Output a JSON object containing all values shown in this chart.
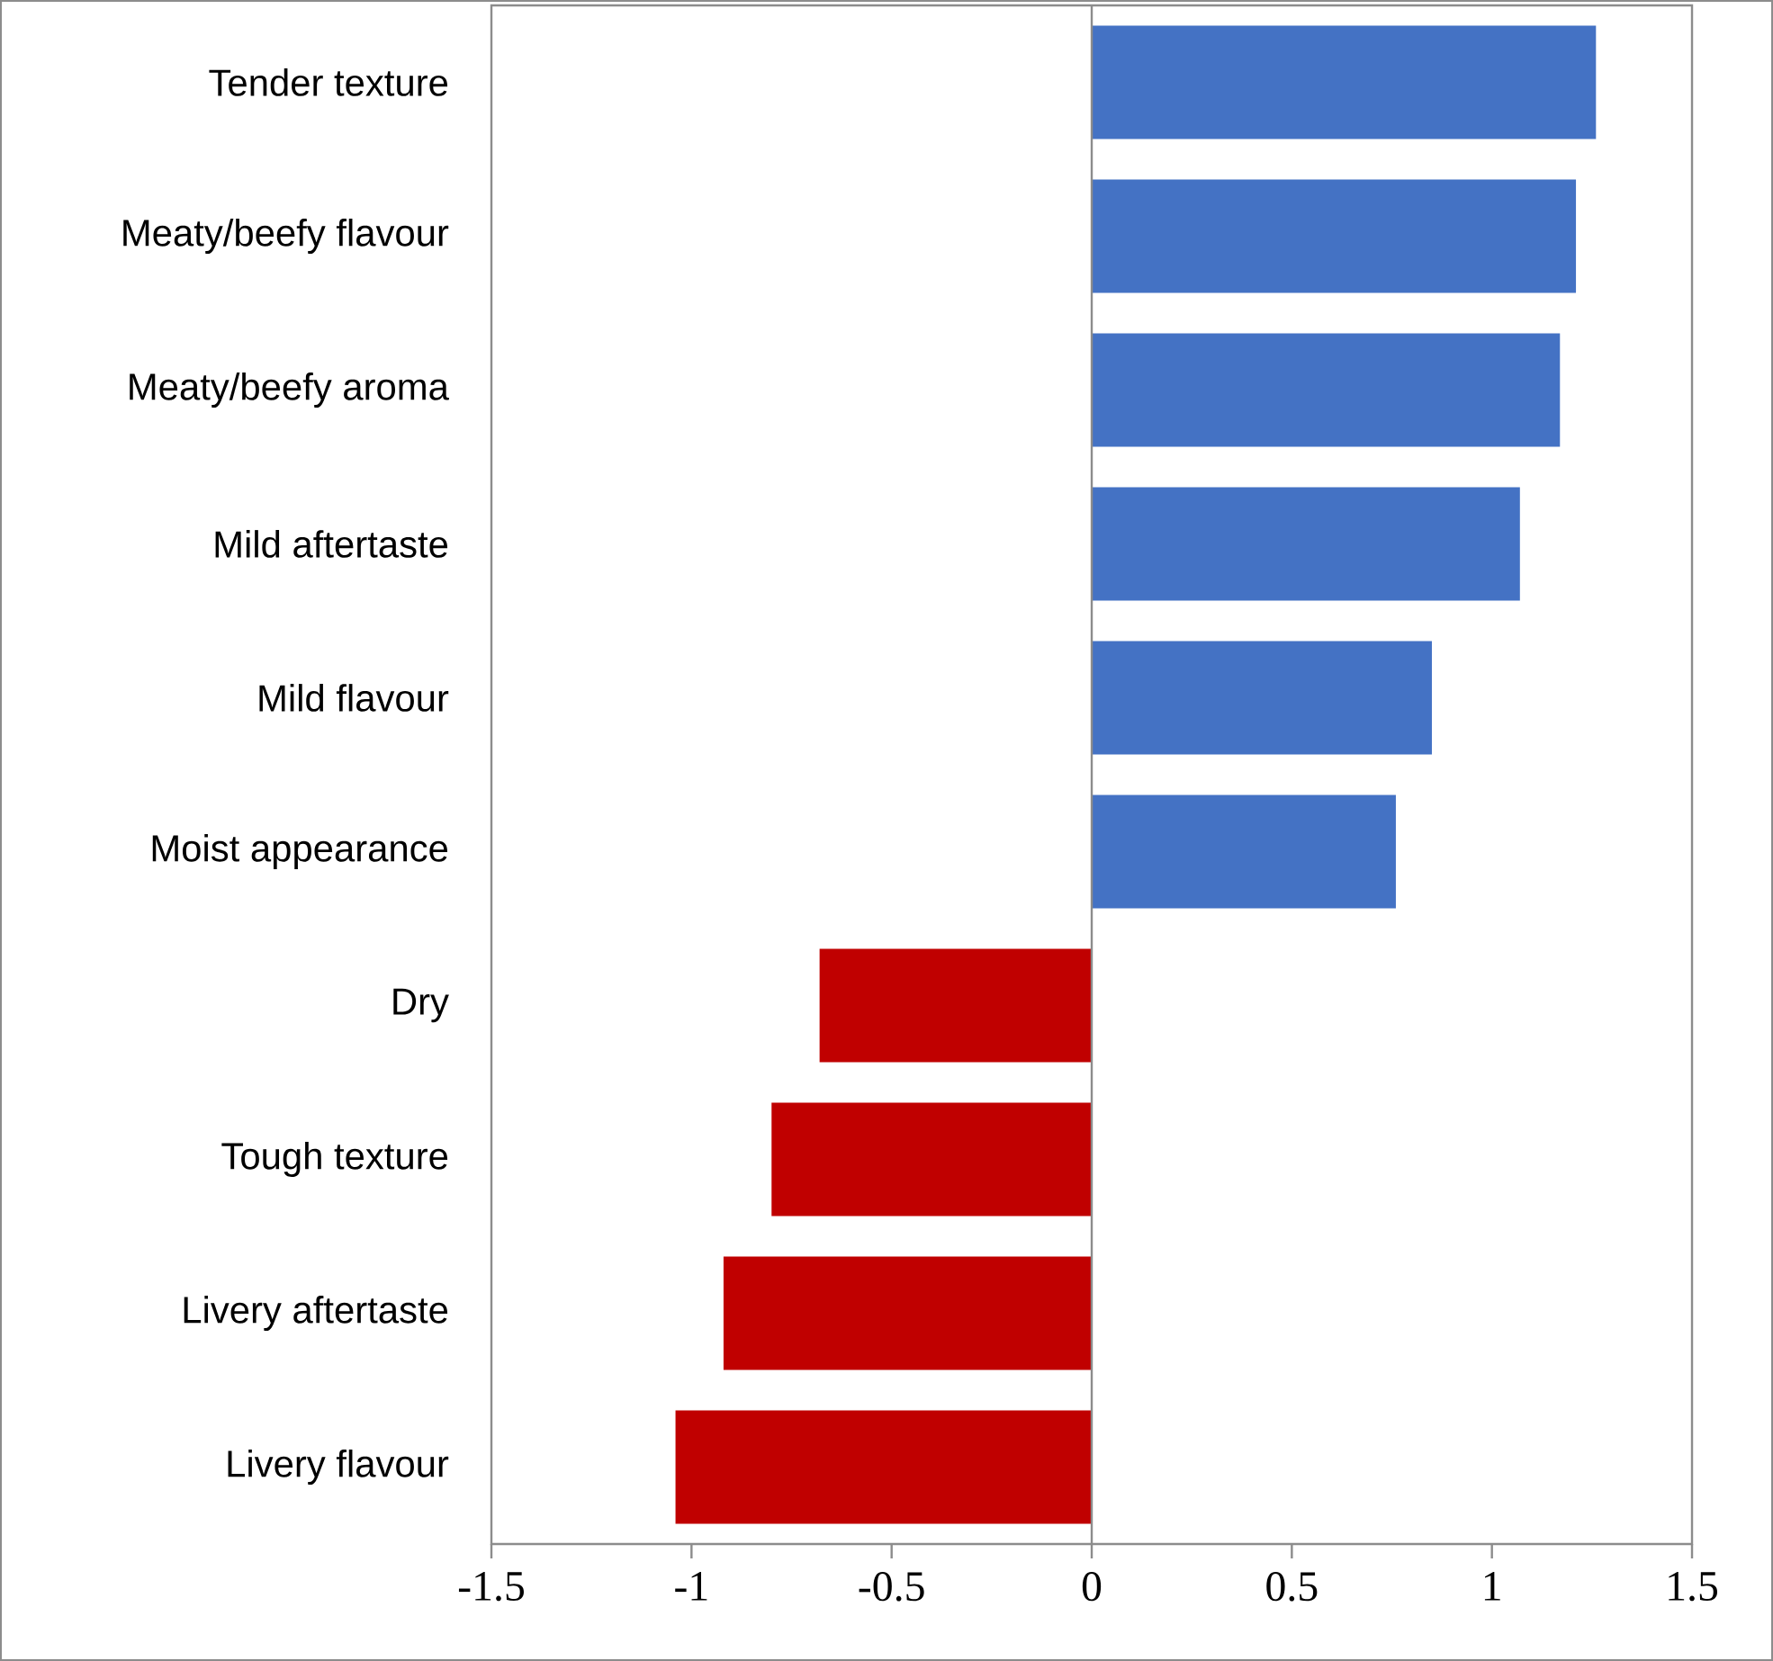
{
  "chart_data": {
    "type": "bar",
    "orientation": "horizontal",
    "categories": [
      "Tender texture",
      "Meaty/beefy flavour",
      "Meaty/beefy aroma",
      "Mild aftertaste",
      "Mild flavour",
      "Moist appearance",
      "Dry",
      "Tough texture",
      "Livery aftertaste",
      "Livery flavour"
    ],
    "values": [
      1.26,
      1.21,
      1.17,
      1.07,
      0.85,
      0.76,
      -0.68,
      -0.8,
      -0.92,
      -1.04
    ],
    "colors": [
      "#4472c4",
      "#4472c4",
      "#4472c4",
      "#4472c4",
      "#4472c4",
      "#4472c4",
      "#c00000",
      "#c00000",
      "#c00000",
      "#c00000"
    ],
    "xlim": [
      -1.5,
      1.5
    ],
    "xticks": [
      -1.5,
      -1,
      -0.5,
      0,
      0.5,
      1,
      1.5
    ]
  }
}
